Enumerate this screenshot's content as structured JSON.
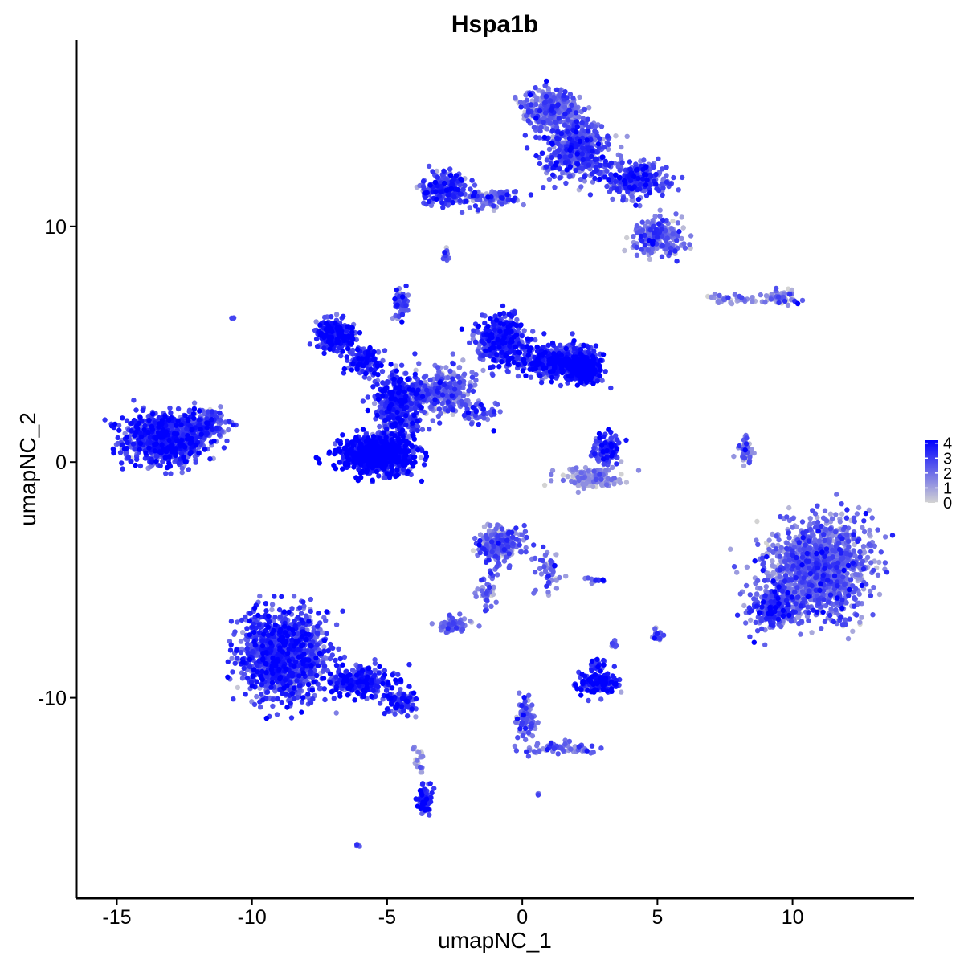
{
  "chart_data": {
    "type": "scatter",
    "title": "Hspa1b",
    "xlabel": "umapNC_1",
    "ylabel": "umapNC_2",
    "xlim": [
      -16.5,
      14.5
    ],
    "ylim": [
      -18.5,
      17.9
    ],
    "x_ticks": [
      -15,
      -10,
      -5,
      0,
      5,
      10
    ],
    "x_tick_labels": [
      "-15",
      "-10",
      "-5",
      "0",
      "5",
      "10"
    ],
    "y_ticks": [
      -10,
      0,
      10
    ],
    "y_tick_labels": [
      "-10",
      "0",
      "10"
    ],
    "grid": false,
    "legend": {
      "position": "right",
      "title": "",
      "breaks": [
        0,
        1,
        2,
        3,
        4
      ],
      "labels": [
        "0",
        "1",
        "2",
        "3",
        "4"
      ],
      "range": [
        0,
        4.2
      ]
    },
    "colors": {
      "low": "#d3d3d3",
      "high": "#0000ff"
    },
    "series": [
      {
        "clusters": [
          {
            "center": [
              -13.2,
              1.0
            ],
            "spread": [
              1.3,
              0.9
            ],
            "n": 900,
            "expr": 3.0
          },
          {
            "center": [
              -11.8,
              1.6
            ],
            "spread": [
              0.7,
              0.5
            ],
            "n": 160,
            "expr": 2.4
          },
          {
            "center": [
              -6.9,
              5.4
            ],
            "spread": [
              0.6,
              0.5
            ],
            "n": 300,
            "expr": 3.2
          },
          {
            "center": [
              -5.8,
              4.3
            ],
            "spread": [
              0.5,
              0.5
            ],
            "n": 140,
            "expr": 3.2
          },
          {
            "center": [
              -5.3,
              0.3
            ],
            "spread": [
              1.1,
              0.6
            ],
            "n": 900,
            "expr": 3.8
          },
          {
            "center": [
              -4.6,
              2.4
            ],
            "spread": [
              0.7,
              1.2
            ],
            "n": 450,
            "expr": 2.9
          },
          {
            "center": [
              -3.0,
              3.0
            ],
            "spread": [
              1.0,
              0.8
            ],
            "n": 300,
            "expr": 2.0
          },
          {
            "center": [
              -4.5,
              6.7
            ],
            "spread": [
              0.2,
              0.5
            ],
            "n": 70,
            "expr": 2.6
          },
          {
            "center": [
              -1.6,
              2.1
            ],
            "spread": [
              0.6,
              0.4
            ],
            "n": 50,
            "expr": 2.6
          },
          {
            "center": [
              -0.8,
              5.2
            ],
            "spread": [
              0.7,
              0.8
            ],
            "n": 450,
            "expr": 3.0
          },
          {
            "center": [
              1.3,
              4.3
            ],
            "spread": [
              1.1,
              0.6
            ],
            "n": 500,
            "expr": 3.2
          },
          {
            "center": [
              2.3,
              4.0
            ],
            "spread": [
              0.6,
              0.5
            ],
            "n": 300,
            "expr": 3.8
          },
          {
            "center": [
              3.1,
              0.6
            ],
            "spread": [
              0.4,
              0.5
            ],
            "n": 120,
            "expr": 3.0
          },
          {
            "center": [
              2.6,
              -0.7
            ],
            "spread": [
              0.9,
              0.3
            ],
            "n": 160,
            "expr": 1.2
          },
          {
            "center": [
              -2.8,
              11.6
            ],
            "spread": [
              0.8,
              0.6
            ],
            "n": 220,
            "expr": 2.8
          },
          {
            "center": [
              -1.0,
              11.2
            ],
            "spread": [
              0.9,
              0.3
            ],
            "n": 90,
            "expr": 2.2
          },
          {
            "center": [
              1.0,
              15.0
            ],
            "spread": [
              0.8,
              0.7
            ],
            "n": 320,
            "expr": 1.9
          },
          {
            "center": [
              2.0,
              13.3
            ],
            "spread": [
              1.0,
              1.0
            ],
            "n": 500,
            "expr": 2.4
          },
          {
            "center": [
              4.2,
              12.0
            ],
            "spread": [
              1.0,
              0.6
            ],
            "n": 300,
            "expr": 2.6
          },
          {
            "center": [
              5.0,
              9.6
            ],
            "spread": [
              0.8,
              0.6
            ],
            "n": 220,
            "expr": 2.0
          },
          {
            "center": [
              -2.8,
              8.8
            ],
            "spread": [
              0.1,
              0.2
            ],
            "n": 15,
            "expr": 2.0
          },
          {
            "center": [
              9.5,
              7.0
            ],
            "spread": [
              0.6,
              0.3
            ],
            "n": 60,
            "expr": 1.7
          },
          {
            "center": [
              7.8,
              6.9
            ],
            "spread": [
              0.8,
              0.15
            ],
            "n": 40,
            "expr": 1.4
          },
          {
            "center": [
              8.3,
              0.5
            ],
            "spread": [
              0.2,
              0.6
            ],
            "n": 40,
            "expr": 2.0
          },
          {
            "center": [
              11.0,
              -4.5
            ],
            "spread": [
              1.5,
              1.6
            ],
            "n": 1400,
            "expr": 1.9
          },
          {
            "center": [
              9.3,
              -6.2
            ],
            "spread": [
              0.8,
              0.7
            ],
            "n": 250,
            "expr": 2.6
          },
          {
            "center": [
              -0.8,
              -3.5
            ],
            "spread": [
              0.7,
              0.7
            ],
            "n": 230,
            "expr": 1.9
          },
          {
            "center": [
              0.9,
              -4.6
            ],
            "spread": [
              0.4,
              0.7
            ],
            "n": 50,
            "expr": 1.9
          },
          {
            "center": [
              -1.3,
              -5.5
            ],
            "spread": [
              0.3,
              0.7
            ],
            "n": 40,
            "expr": 1.9
          },
          {
            "center": [
              -2.6,
              -6.9
            ],
            "spread": [
              0.5,
              0.3
            ],
            "n": 70,
            "expr": 1.9
          },
          {
            "center": [
              2.8,
              -9.4
            ],
            "spread": [
              0.6,
              0.4
            ],
            "n": 160,
            "expr": 3.5
          },
          {
            "center": [
              2.8,
              -8.6
            ],
            "spread": [
              0.3,
              0.3
            ],
            "n": 30,
            "expr": 3.0
          },
          {
            "center": [
              5.0,
              -7.3
            ],
            "spread": [
              0.15,
              0.2
            ],
            "n": 25,
            "expr": 2.0
          },
          {
            "center": [
              3.4,
              -7.7
            ],
            "spread": [
              0.1,
              0.15
            ],
            "n": 10,
            "expr": 2.0
          },
          {
            "center": [
              2.7,
              -5.0
            ],
            "spread": [
              0.3,
              0.1
            ],
            "n": 12,
            "expr": 2.0
          },
          {
            "center": [
              -8.8,
              -8.2
            ],
            "spread": [
              1.3,
              1.5
            ],
            "n": 1300,
            "expr": 2.8
          },
          {
            "center": [
              -6.0,
              -9.3
            ],
            "spread": [
              0.9,
              0.5
            ],
            "n": 320,
            "expr": 3.1
          },
          {
            "center": [
              -4.5,
              -10.2
            ],
            "spread": [
              0.5,
              0.4
            ],
            "n": 100,
            "expr": 3.0
          },
          {
            "center": [
              -3.6,
              -14.4
            ],
            "spread": [
              0.25,
              0.5
            ],
            "n": 80,
            "expr": 3.2
          },
          {
            "center": [
              -3.8,
              -12.6
            ],
            "spread": [
              0.2,
              0.6
            ],
            "n": 20,
            "expr": 1.0
          },
          {
            "center": [
              0.1,
              -10.8
            ],
            "spread": [
              0.3,
              1.1
            ],
            "n": 70,
            "expr": 2.2
          },
          {
            "center": [
              1.4,
              -12.1
            ],
            "spread": [
              1.0,
              0.2
            ],
            "n": 60,
            "expr": 2.2
          },
          {
            "center": [
              0.6,
              -14.1
            ],
            "spread": [
              0.05,
              0.05
            ],
            "n": 5,
            "expr": 2.0
          },
          {
            "center": [
              -6.1,
              -16.3
            ],
            "spread": [
              0.1,
              0.05
            ],
            "n": 5,
            "expr": 2.0
          },
          {
            "center": [
              -10.7,
              6.1
            ],
            "spread": [
              0.05,
              0.05
            ],
            "n": 3,
            "expr": 2.0
          }
        ]
      }
    ]
  }
}
